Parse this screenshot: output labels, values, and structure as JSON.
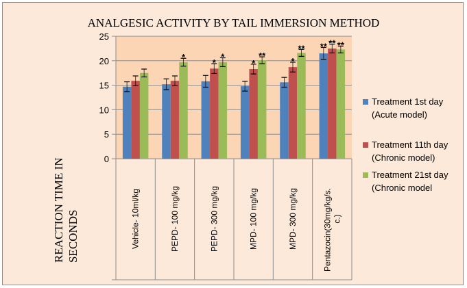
{
  "chart_data": {
    "type": "bar",
    "title": "ANALGESIC ACTIVITY BY TAIL IMMERSION METHOD",
    "xlabel": "",
    "ylabel": "REACTION TIME IN SECONDS",
    "ylim": [
      0,
      25
    ],
    "yticks": [
      0,
      5,
      10,
      15,
      20,
      25
    ],
    "grid": true,
    "legend_position": "right",
    "categories": [
      "Vehicle- 10ml/kg",
      "PEPD- 100 mg/kg",
      "PEPD- 300 mg/kg",
      "MPD- 100 mg/kg",
      "MPD- 300 mg/kg",
      "Pentazocin(30mg/kg/s.c.)"
    ],
    "series": [
      {
        "name": "Treatment 1st day (Acute model)",
        "color": "#4f81bd",
        "values": [
          14.7,
          15.2,
          15.8,
          14.8,
          15.6,
          21.5
        ],
        "errors": [
          1.0,
          1.1,
          1.2,
          1.0,
          1.0,
          1.2
        ],
        "significance": [
          "",
          "",
          "",
          "",
          "",
          "**"
        ]
      },
      {
        "name": "Treatment 11th day (Chronic model)",
        "color": "#c0504d",
        "values": [
          15.9,
          15.9,
          18.4,
          18.3,
          18.7,
          22.5
        ],
        "errors": [
          1.0,
          1.0,
          1.0,
          1.0,
          1.0,
          0.9
        ],
        "significance": [
          "",
          "",
          "*",
          "*",
          "*",
          "**"
        ]
      },
      {
        "name": "Treatment 21st day (Chronic model",
        "color": "#9bbb59",
        "values": [
          17.5,
          19.7,
          19.7,
          20.1,
          21.6,
          22.3
        ],
        "errors": [
          0.8,
          0.8,
          0.9,
          0.7,
          0.7,
          0.7
        ],
        "significance": [
          "",
          "*",
          "*",
          "**",
          "**",
          "**"
        ]
      }
    ]
  },
  "legend": [
    {
      "label": "Treatment 1st day (Acute model)"
    },
    {
      "label": "Treatment 11th day (Chronic model)"
    },
    {
      "label": "Treatment 21st day (Chronic model"
    }
  ]
}
